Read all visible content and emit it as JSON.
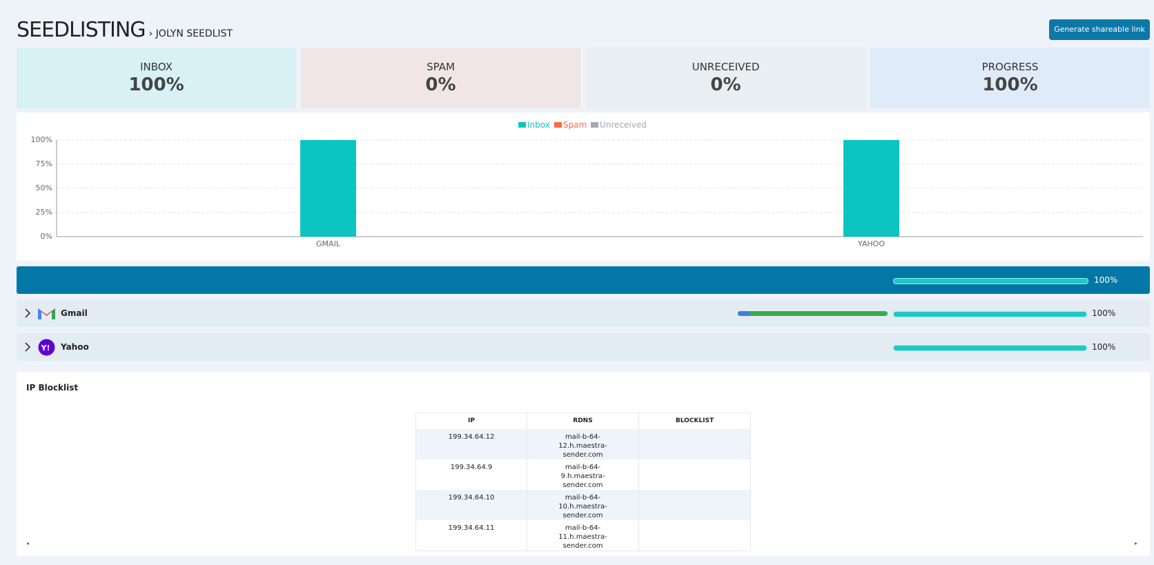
{
  "header": {
    "title": "SEEDLISTING",
    "breadcrumb": "› JOLYN SEEDLIST",
    "button": "Generate shareable link"
  },
  "cards": [
    {
      "label": "INBOX",
      "value": "100%"
    },
    {
      "label": "SPAM",
      "value": "0%"
    },
    {
      "label": "UNRECEIVED",
      "value": "0%"
    },
    {
      "label": "PROGRESS",
      "value": "100%"
    }
  ],
  "chart_data": {
    "type": "bar",
    "stacked": true,
    "categories": [
      "GMAIL",
      "YAHOO"
    ],
    "series": [
      {
        "name": "Inbox",
        "color": "#0cc4c0",
        "values": [
          100,
          100
        ]
      },
      {
        "name": "Spam",
        "color": "#fc6a45",
        "values": [
          0,
          0
        ]
      },
      {
        "name": "Unreceived",
        "color": "#a5a5b5",
        "values": [
          0,
          0
        ]
      }
    ],
    "ylim": [
      0,
      100
    ],
    "yticks": [
      {
        "value": 0,
        "label": "0%"
      },
      {
        "value": 25,
        "label": "25%"
      },
      {
        "value": 50,
        "label": "50%"
      },
      {
        "value": 75,
        "label": "75%"
      },
      {
        "value": 100,
        "label": "100%"
      }
    ],
    "grid": true,
    "legend": "top"
  },
  "summary": {
    "progress": "100%"
  },
  "providers": [
    {
      "name": "Gmail",
      "progress": "100%"
    },
    {
      "name": "Yahoo",
      "progress": "100%"
    }
  ],
  "blocklist": {
    "title": "IP Blocklist",
    "columns": [
      "IP",
      "RDNS",
      "BLOCKLIST"
    ],
    "rows": [
      [
        "199.34.64.12",
        "mail-b-64-12.h.maestra-sender.com"
      ],
      [
        "199.34.64.9",
        "mail-b-64-9.h.maestra-sender.com"
      ],
      [
        "199.34.64.10",
        "mail-b-64-10.h.maestra-sender.com"
      ],
      [
        "199.34.64.11",
        "mail-b-64-11.h.maestra-sender.com"
      ]
    ]
  }
}
